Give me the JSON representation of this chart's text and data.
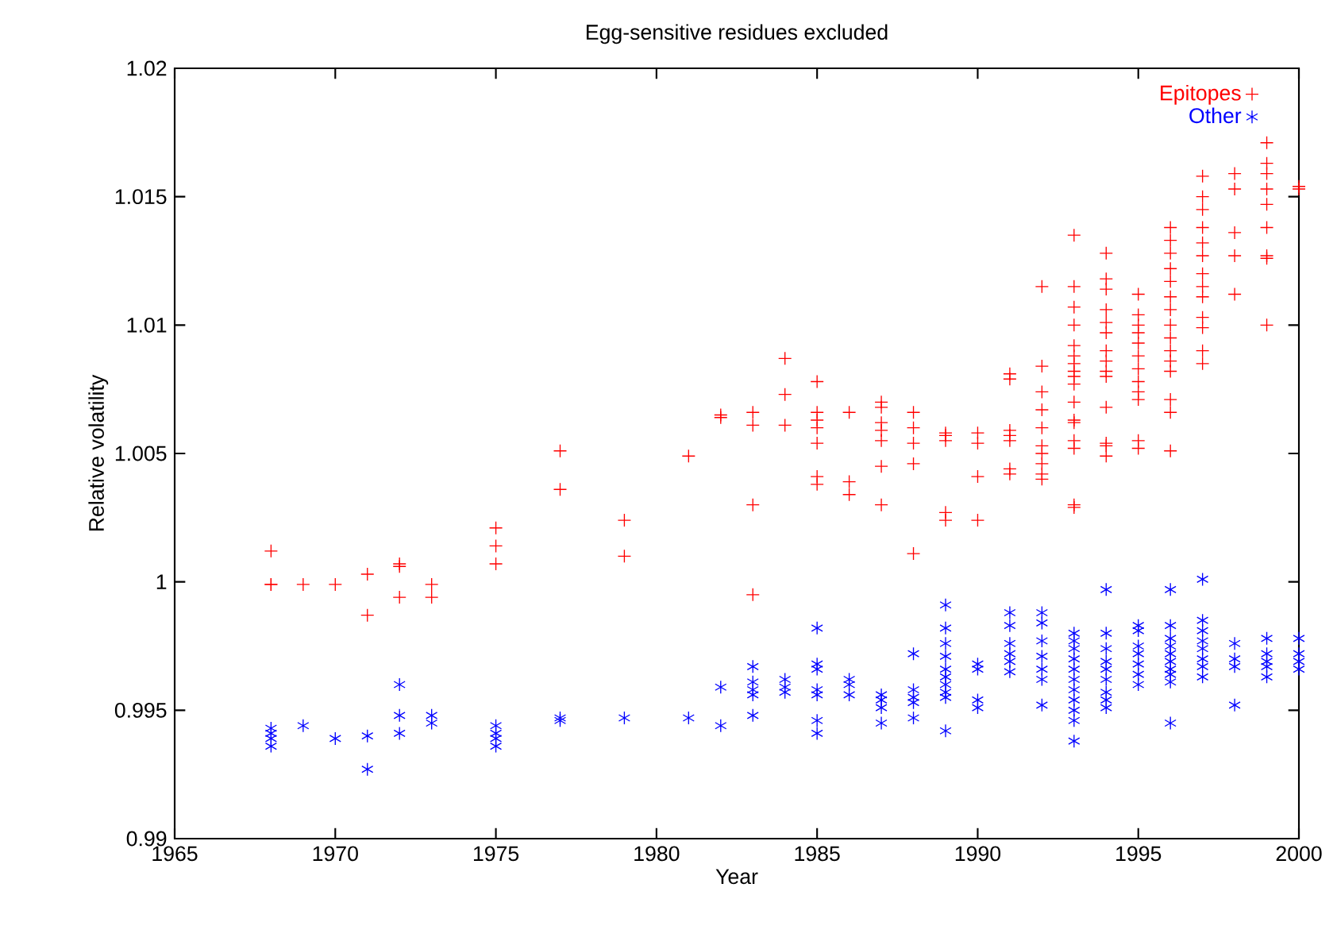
{
  "chart_data": {
    "type": "scatter",
    "title": "Egg-sensitive residues excluded",
    "xlabel": "Year",
    "ylabel": "Relative volatility",
    "xlim": [
      1965,
      2000
    ],
    "ylim": [
      0.99,
      1.02
    ],
    "xticks": [
      1965,
      1970,
      1975,
      1980,
      1985,
      1990,
      1995,
      2000
    ],
    "yticks": [
      0.99,
      0.995,
      1,
      1.005,
      1.01,
      1.015,
      1.02
    ],
    "grid": false,
    "legend": "top right",
    "series": [
      {
        "name": "Epitopes",
        "color": "#ff0000",
        "marker": "cross",
        "x": [
          1968,
          1968,
          1968,
          1969,
          1970,
          1971,
          1971,
          1972,
          1972,
          1972,
          1973,
          1973,
          1975,
          1975,
          1975,
          1977,
          1977,
          1979,
          1979,
          1981,
          1982,
          1982,
          1983,
          1983,
          1983,
          1983,
          1984,
          1984,
          1984,
          1985,
          1985,
          1985,
          1985,
          1985,
          1985,
          1985,
          1986,
          1986,
          1986,
          1987,
          1987,
          1987,
          1987,
          1987,
          1987,
          1987,
          1988,
          1988,
          1988,
          1988,
          1988,
          1989,
          1989,
          1989,
          1989,
          1989,
          1990,
          1990,
          1990,
          1990,
          1991,
          1991,
          1991,
          1991,
          1991,
          1991,
          1991,
          1992,
          1992,
          1992,
          1992,
          1992,
          1992,
          1992,
          1992,
          1992,
          1992,
          1993,
          1993,
          1993,
          1993,
          1993,
          1993,
          1993,
          1993,
          1993,
          1993,
          1993,
          1993,
          1993,
          1993,
          1993,
          1993,
          1993,
          1994,
          1994,
          1994,
          1994,
          1994,
          1994,
          1994,
          1994,
          1994,
          1994,
          1994,
          1994,
          1994,
          1994,
          1995,
          1995,
          1995,
          1995,
          1995,
          1995,
          1995,
          1995,
          1995,
          1995,
          1995,
          1995,
          1996,
          1996,
          1996,
          1996,
          1996,
          1996,
          1996,
          1996,
          1996,
          1996,
          1996,
          1996,
          1996,
          1996,
          1996,
          1997,
          1997,
          1997,
          1997,
          1997,
          1997,
          1997,
          1997,
          1997,
          1997,
          1997,
          1997,
          1997,
          1998,
          1998,
          1998,
          1998,
          1998,
          1999,
          1999,
          1999,
          1999,
          1999,
          1999,
          1999,
          1999,
          1999,
          2000,
          2000
        ],
        "values": [
          1.0012,
          0.9999,
          0.9999,
          0.9999,
          0.9999,
          1.0003,
          0.9987,
          1.0007,
          1.0006,
          0.9994,
          0.9999,
          0.9994,
          1.0021,
          1.0014,
          1.0007,
          1.0051,
          1.0036,
          1.0024,
          1.001,
          1.0049,
          1.0064,
          1.0065,
          1.0066,
          1.0061,
          1.003,
          0.9995,
          1.0087,
          1.0073,
          1.0061,
          1.0078,
          1.0066,
          1.0063,
          1.006,
          1.0054,
          1.0041,
          1.0038,
          1.0066,
          1.0039,
          1.0034,
          1.007,
          1.0068,
          1.0062,
          1.0059,
          1.0055,
          1.0045,
          1.003,
          1.0066,
          1.006,
          1.0054,
          1.0046,
          1.0011,
          1.0058,
          1.0057,
          1.0055,
          1.0027,
          1.0024,
          1.0058,
          1.0054,
          1.0041,
          1.0024,
          1.0081,
          1.0079,
          1.0059,
          1.0057,
          1.0055,
          1.0044,
          1.0042,
          1.0115,
          1.0084,
          1.0074,
          1.0067,
          1.006,
          1.0053,
          1.005,
          1.0046,
          1.0042,
          1.004,
          1.0135,
          1.0115,
          1.0107,
          1.01,
          1.0092,
          1.0088,
          1.0085,
          1.0082,
          1.008,
          1.0077,
          1.007,
          1.0063,
          1.0062,
          1.0055,
          1.0052,
          1.003,
          1.0029,
          1.0128,
          1.0118,
          1.0114,
          1.0106,
          1.0101,
          1.0097,
          1.009,
          1.0086,
          1.0082,
          1.008,
          1.0068,
          1.0054,
          1.0053,
          1.0049,
          1.0112,
          1.0104,
          1.01,
          1.0097,
          1.0093,
          1.0088,
          1.0083,
          1.0078,
          1.0074,
          1.0071,
          1.0055,
          1.0052,
          1.0138,
          1.0133,
          1.0128,
          1.0122,
          1.0117,
          1.0111,
          1.0106,
          1.01,
          1.0095,
          1.009,
          1.0086,
          1.0082,
          1.0071,
          1.0066,
          1.0051,
          1.0158,
          1.015,
          1.0145,
          1.0138,
          1.0132,
          1.0127,
          1.012,
          1.0115,
          1.0111,
          1.0103,
          1.0099,
          1.009,
          1.0085,
          1.0159,
          1.0153,
          1.0136,
          1.0127,
          1.0112,
          1.0171,
          1.0163,
          1.0159,
          1.0153,
          1.0147,
          1.0138,
          1.0127,
          1.0126,
          1.01,
          1.0154,
          1.0153
        ]
      },
      {
        "name": "Other",
        "color": "#0000ff",
        "x": [
          1968,
          1968,
          1968,
          1968,
          1969,
          1970,
          1971,
          1971,
          1972,
          1972,
          1972,
          1973,
          1973,
          1975,
          1975,
          1975,
          1975,
          1977,
          1977,
          1979,
          1981,
          1982,
          1982,
          1983,
          1983,
          1983,
          1983,
          1983,
          1984,
          1984,
          1984,
          1985,
          1985,
          1985,
          1985,
          1985,
          1985,
          1985,
          1986,
          1986,
          1986,
          1987,
          1987,
          1987,
          1987,
          1988,
          1988,
          1988,
          1988,
          1988,
          1989,
          1989,
          1989,
          1989,
          1989,
          1989,
          1989,
          1989,
          1989,
          1989,
          1990,
          1990,
          1990,
          1990,
          1991,
          1991,
          1991,
          1991,
          1991,
          1991,
          1992,
          1992,
          1992,
          1992,
          1992,
          1992,
          1992,
          1993,
          1993,
          1993,
          1993,
          1993,
          1993,
          1993,
          1993,
          1993,
          1993,
          1993,
          1994,
          1994,
          1994,
          1994,
          1994,
          1994,
          1994,
          1994,
          1994,
          1995,
          1995,
          1995,
          1995,
          1995,
          1995,
          1995,
          1996,
          1996,
          1996,
          1996,
          1996,
          1996,
          1996,
          1996,
          1996,
          1996,
          1997,
          1997,
          1997,
          1997,
          1997,
          1997,
          1997,
          1997,
          1998,
          1998,
          1998,
          1998,
          1999,
          1999,
          1999,
          1999,
          1999,
          2000,
          2000,
          2000,
          2000
        ],
        "values": [
          0.9943,
          0.9941,
          0.9939,
          0.9936,
          0.9944,
          0.9939,
          0.994,
          0.9927,
          0.996,
          0.9948,
          0.9941,
          0.9948,
          0.9945,
          0.9944,
          0.9941,
          0.9939,
          0.9936,
          0.9947,
          0.9946,
          0.9947,
          0.9947,
          0.9959,
          0.9944,
          0.9967,
          0.9961,
          0.9958,
          0.9956,
          0.9948,
          0.9962,
          0.9959,
          0.9957,
          0.9982,
          0.9968,
          0.9966,
          0.9958,
          0.9956,
          0.9946,
          0.9941,
          0.9962,
          0.996,
          0.9956,
          0.9956,
          0.9954,
          0.9951,
          0.9945,
          0.9972,
          0.9958,
          0.9955,
          0.9953,
          0.9947,
          0.9991,
          0.9982,
          0.9976,
          0.9971,
          0.9966,
          0.9963,
          0.996,
          0.9957,
          0.9955,
          0.9942,
          0.9968,
          0.9966,
          0.9954,
          0.9951,
          0.9988,
          0.9983,
          0.9976,
          0.9972,
          0.9969,
          0.9965,
          0.9988,
          0.9984,
          0.9977,
          0.9971,
          0.9966,
          0.9962,
          0.9952,
          0.998,
          0.9977,
          0.9974,
          0.997,
          0.9966,
          0.9962,
          0.9958,
          0.9954,
          0.995,
          0.9946,
          0.9938,
          0.9997,
          0.998,
          0.9974,
          0.9969,
          0.9966,
          0.9962,
          0.9957,
          0.9954,
          0.9951,
          0.9983,
          0.9981,
          0.9975,
          0.9972,
          0.9968,
          0.9964,
          0.996,
          0.9997,
          0.9983,
          0.9978,
          0.9975,
          0.9972,
          0.9969,
          0.9966,
          0.9964,
          0.9961,
          0.9945,
          1.0001,
          0.9985,
          0.9981,
          0.9977,
          0.9974,
          0.997,
          0.9967,
          0.9963,
          0.9976,
          0.997,
          0.9967,
          0.9952,
          0.9978,
          0.9972,
          0.9969,
          0.9967,
          0.9963,
          0.9978,
          0.9972,
          0.9969,
          0.9966
        ]
      }
    ]
  }
}
